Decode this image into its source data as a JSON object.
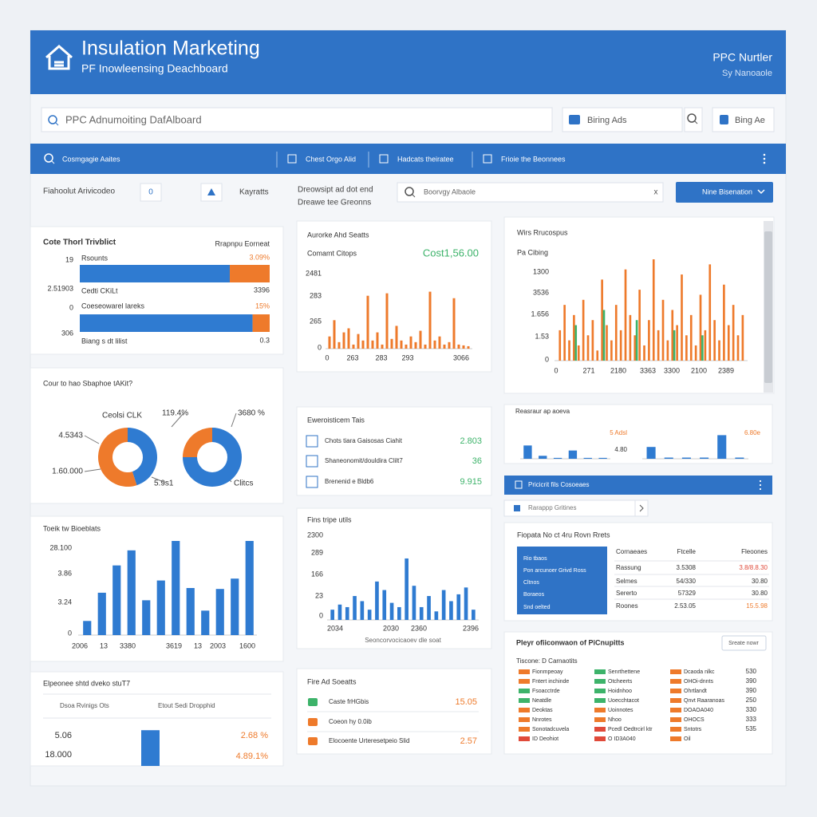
{
  "header": {
    "title": "Insulation Marketing",
    "subtitle": "PF Inowleensing Deachboard",
    "right_title": "PPC Nurtler",
    "right_subtitle": "Sy Nanoaole"
  },
  "search": {
    "placeholder": "PPC Adnumoiting DafAlboard",
    "bing_ads": "Biring Ads",
    "bing_ad": "Bing Ae"
  },
  "nav": [
    "Cosmgagie Aaites",
    "Chest Orgo Alid",
    "Hadcats theiratee",
    "Frioie the Beonnees"
  ],
  "filters": {
    "label": "Fiahoolut Arivicodeo",
    "count": "0",
    "keyword": "Kayratts",
    "desc": [
      "Dreowsipt ad dot end",
      "Dreawe tee Greonns"
    ],
    "search": "Boorvgy Albaole",
    "clear": "x",
    "button": "Nine Bisenation"
  },
  "panels": {
    "budget": {
      "title": "Cote Thorl Trivblict",
      "subtitle": "Rrapnpu Eorneat",
      "texts": [
        "19",
        "Rsounts",
        "3.09%",
        "2.51903",
        "Cedti CKiLt",
        "3396",
        "0",
        "Coeseowarel lareks",
        "15%",
        "306",
        "Biang s dt lilist",
        "0.3"
      ],
      "colors": [
        "#2f7bd1",
        "#ee7a2b"
      ],
      "bars": [
        [
          79,
          21
        ],
        [
          91,
          9
        ]
      ],
      "xlim": [
        0,
        100
      ]
    },
    "spend_split": {
      "title": "Cour to hao Sbaphoe tAKit?",
      "texts": [
        "Ceolsi CLK",
        "4.5343",
        "1.60.000",
        "119.4%",
        "3680 %",
        "5.9s1",
        "Clitcs"
      ],
      "colors": [
        "#2f7bd1",
        "#ee7a2b"
      ],
      "donuts": [
        [
          45,
          55
        ],
        [
          75,
          25
        ]
      ]
    },
    "trend_bars": {
      "title": "Toeik tw Bioeblats",
      "y_labels": [
        "28.100",
        "3.86",
        "3.24",
        "0"
      ],
      "x_labels": [
        "2006",
        "13",
        "3380",
        "3619",
        "13",
        "2003",
        "1600"
      ],
      "color": "#2f7bd1",
      "ylim": [
        0,
        100
      ],
      "values": [
        15,
        45,
        74,
        90,
        37,
        58,
        100,
        50,
        26,
        49,
        60,
        100
      ]
    },
    "summary": {
      "title": "Elpeonee shtd dveko stuT7",
      "tabs": [
        "Dsoa Rvinigs Ots",
        "Etout Sedi Dropphid"
      ],
      "texts": [
        "5.06",
        "18.000",
        "2.68 %",
        "4.89.1%"
      ],
      "color": "#2f7bd1",
      "ylim": [
        0,
        100
      ],
      "value": 80
    },
    "cost_chart": {
      "title": "Aurorke Ahd Seatts",
      "label": "Comamt Citops",
      "total": "Cost1,56.00",
      "y_labels": [
        "2481",
        "283",
        "265",
        "0"
      ],
      "x_labels": [
        "0",
        "263",
        "283",
        "293",
        "3066"
      ],
      "color": "#ee7a2b",
      "ylim": [
        0,
        100
      ],
      "values": [
        15,
        35,
        8,
        20,
        25,
        5,
        18,
        10,
        65,
        10,
        20,
        5,
        68,
        12,
        28,
        10,
        5,
        15,
        8,
        22,
        5,
        70,
        10,
        15,
        5,
        8,
        62,
        5,
        4,
        3
      ]
    },
    "metrics": {
      "title": "Eweroisticem Tais",
      "rows": [
        {
          "label": "Chots tiara Gaisosas Ciahit",
          "value": "2.803"
        },
        {
          "label": "Shaneonomit/douldira Clilt7",
          "value": "36"
        },
        {
          "label": "Brenenid e Bldb6",
          "value": "9.915"
        }
      ]
    },
    "clicks_bars": {
      "title": "Fins tripe utils",
      "y_labels": [
        "2300",
        "289",
        "166",
        "23",
        "0"
      ],
      "x_labels": [
        "2034",
        "2030",
        "2360",
        "2396"
      ],
      "caption": "Seoncorvocicaoev dle soat",
      "color": "#2f7bd1",
      "ylim": [
        0,
        100
      ],
      "values": [
        12,
        18,
        15,
        28,
        22,
        12,
        45,
        35,
        20,
        15,
        72,
        40,
        15,
        28,
        10,
        35,
        22,
        30,
        38,
        12
      ]
    },
    "fire_ads": {
      "title": "Fire Ad Soeatts",
      "rows": [
        {
          "label": "Caste frHGbis",
          "value": "15.05"
        },
        {
          "label": "Coeon hy 0.0ib"
        },
        {
          "label": "Elocoente Urteresetpeio Slid",
          "value": "2.57"
        }
      ]
    },
    "wirs_chart": {
      "title": "Wirs Rrucospus",
      "label": "Pa Cibing",
      "y_labels": [
        "1300",
        "3536",
        "1.656",
        "1.53",
        "0"
      ],
      "x_labels": [
        "0",
        "271",
        "2180",
        "3363",
        "3300",
        "2100",
        "2389"
      ],
      "ylim": [
        0,
        100
      ],
      "series": [
        {
          "color": "#ee7a2b",
          "values": [
            30,
            55,
            20,
            45,
            15,
            60,
            25,
            40,
            10,
            80,
            35,
            20,
            55,
            30,
            90,
            45,
            25,
            70,
            15,
            40,
            100,
            30,
            60,
            20,
            50,
            35,
            85,
            25,
            45,
            15,
            65,
            30,
            95,
            40,
            20,
            75,
            35,
            55,
            25,
            45
          ]
        },
        {
          "color": "#3db36a",
          "values": [
            null,
            null,
            null,
            35,
            null,
            null,
            null,
            null,
            null,
            50,
            null,
            null,
            null,
            null,
            null,
            null,
            40,
            null,
            null,
            null,
            null,
            null,
            null,
            null,
            30,
            null,
            null,
            null,
            null,
            null,
            25,
            null,
            null,
            null,
            null,
            null,
            null,
            null,
            null,
            null
          ]
        }
      ]
    },
    "mini": {
      "title": "Reasraur ap aoeva",
      "texts": [
        "5 Adsl",
        "4.80",
        "6.80e"
      ],
      "color": "#2f7bd1",
      "ylim": [
        0,
        100
      ],
      "left_values": [
        45,
        10,
        3,
        28,
        3,
        3
      ],
      "right_values": [
        40,
        4,
        4,
        4,
        80,
        4
      ]
    },
    "list_bar": {
      "title": "Pricicrit fils Cosoeaes"
    },
    "list_search": {
      "placeholder": "Rarappp Gritines"
    },
    "table": {
      "title": "Fiopata No ct 4ru Rovn Rrets",
      "side": [
        "Rio tbaos",
        "Pon arcunoer Grivd Ross",
        "Cltnos",
        "Boraeos",
        "Snd oelted"
      ],
      "headers": [
        "Cornaeaes",
        "Ftcelle",
        "Fleoones"
      ],
      "rows": [
        [
          "Rassung",
          "3.5308",
          "3.8/8.8.30"
        ],
        [
          "Selmes",
          "54/330",
          "30.80"
        ],
        [
          "Sererto",
          "57329",
          "30.80"
        ],
        [
          "Roones",
          "2.53.05",
          "15.5.98"
        ]
      ]
    },
    "legend": {
      "title": "Pleyr ofiiconwaon of PiCnupitts",
      "button": "Sreate nowr",
      "subtitle": "Tiscone: D Carnaotits",
      "items": [
        {
          "label": "Fionmpeoay",
          "color": "#ee7a2b"
        },
        {
          "label": "Fntert inchinde",
          "color": "#ee7a2b"
        },
        {
          "label": "Fsoacctrde",
          "color": "#3db36a"
        },
        {
          "label": "Neatdle",
          "color": "#3db36a"
        },
        {
          "label": "Deoktas",
          "color": "#ee7a2b"
        },
        {
          "label": "Nnrotes",
          "color": "#ee7a2b"
        },
        {
          "label": "Sonotadcuvela",
          "color": "#ee7a2b"
        },
        {
          "label": "ID Deohiot",
          "color": "#e04a3a"
        },
        {
          "label": "Senrthettene",
          "color": "#3db36a"
        },
        {
          "label": "Otcheerts",
          "color": "#3db36a"
        },
        {
          "label": "Hoidnhoo",
          "color": "#3db36a"
        },
        {
          "label": "Uoecchtacot",
          "color": "#3db36a"
        },
        {
          "label": "Uoinnotes",
          "color": "#ee7a2b"
        },
        {
          "label": "Nhoo",
          "color": "#ee7a2b"
        },
        {
          "label": "Pcedl Oedtrcirl ktr",
          "color": "#e04a3a"
        },
        {
          "label": "O ID3A040",
          "color": "#e04a3a"
        },
        {
          "label": "Dcaoda nlkc",
          "color": "#ee7a2b"
        },
        {
          "label": "OHOi-dnnts",
          "color": "#ee7a2b"
        },
        {
          "label": "Ohrtlandt",
          "color": "#ee7a2b"
        },
        {
          "label": "Qnvt Raaranoas",
          "color": "#ee7a2b"
        },
        {
          "label": "DOAOA040",
          "color": "#ee7a2b"
        },
        {
          "label": "OHOCS",
          "color": "#ee7a2b"
        },
        {
          "label": "Sntotrs",
          "color": "#ee7a2b"
        },
        {
          "label": "Oil",
          "color": "#ee7a2b"
        }
      ],
      "values": [
        530,
        390,
        390,
        250,
        330,
        333,
        535
      ]
    }
  }
}
